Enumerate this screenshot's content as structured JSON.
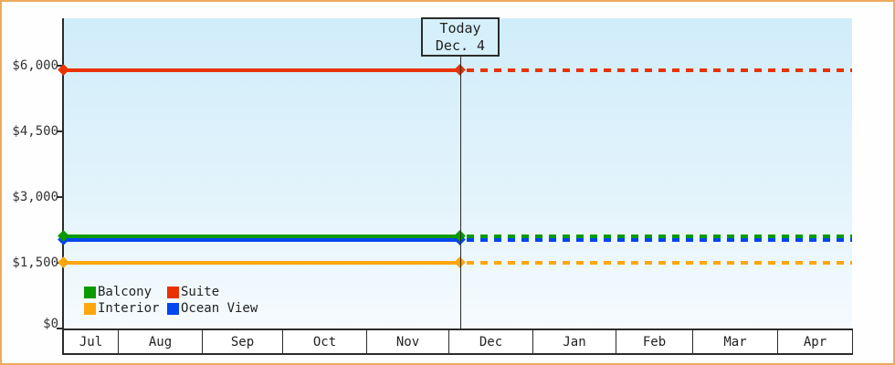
{
  "appearance": {
    "frame_border": "#ecaa5f",
    "plot_bg_top": "#d0edfa",
    "plot_bg_bottom": "#f6fbfe",
    "axis_color": "#2b2b2b",
    "text_color": "#333333",
    "today_box_bg": "#d6f0fb"
  },
  "chart_data": {
    "type": "line",
    "title": "",
    "xlabel": "",
    "ylabel": "",
    "categories": [
      "Jul",
      "Aug",
      "Sep",
      "Oct",
      "Nov",
      "Dec",
      "Jan",
      "Feb",
      "Mar",
      "Apr"
    ],
    "y_axis": {
      "min": 0,
      "max": 6250,
      "ticks": [
        6000,
        4500,
        3000,
        1500,
        0
      ],
      "tick_labels": [
        "$6,000",
        "$4,500",
        "$3,000",
        "$1,500",
        "$0"
      ]
    },
    "series": [
      {
        "name": "Suite",
        "color": "#ea3200",
        "value_usd": 5900
      },
      {
        "name": "Ocean View",
        "color": "#0345ee",
        "value_usd": 2030
      },
      {
        "name": "Balcony",
        "color": "#0a9a00",
        "value_usd": 2100
      },
      {
        "name": "Interior",
        "color": "#ffa60d",
        "value_usd": 1500
      }
    ],
    "line_style": {
      "before_today": "solid",
      "after_today": "dotted",
      "flat_constant_prices": true
    },
    "today": {
      "label": "Today",
      "date": "Dec. 4",
      "month": "Dec",
      "day": 4
    },
    "grid": false,
    "legend": {
      "position": "bottom-left-inside-plot",
      "items": [
        {
          "label": "Balcony",
          "color": "#0a9a00"
        },
        {
          "label": "Suite",
          "color": "#ea3200"
        },
        {
          "label": "Interior",
          "color": "#ffa60d"
        },
        {
          "label": "Ocean View",
          "color": "#0345ee"
        }
      ]
    }
  }
}
